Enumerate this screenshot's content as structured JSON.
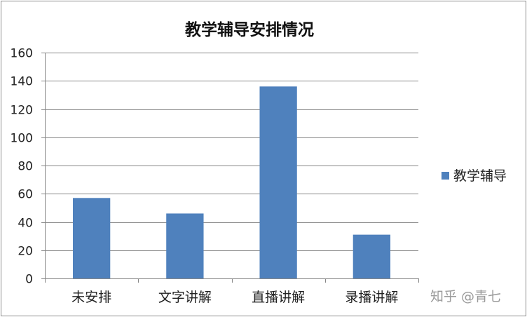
{
  "chart_data": {
    "type": "bar",
    "title": "教学辅导安排情况",
    "categories": [
      "未安排",
      "文字讲解",
      "直播讲解",
      "录播讲解"
    ],
    "series": [
      {
        "name": "教学辅导",
        "values": [
          57,
          46,
          136,
          31
        ],
        "color": "#4f81bd"
      }
    ],
    "ylim": [
      0,
      160
    ],
    "yticks": [
      0,
      20,
      40,
      60,
      80,
      100,
      120,
      140,
      160
    ],
    "grid": true,
    "legend_position": "right"
  },
  "watermark": "知乎 @青七"
}
